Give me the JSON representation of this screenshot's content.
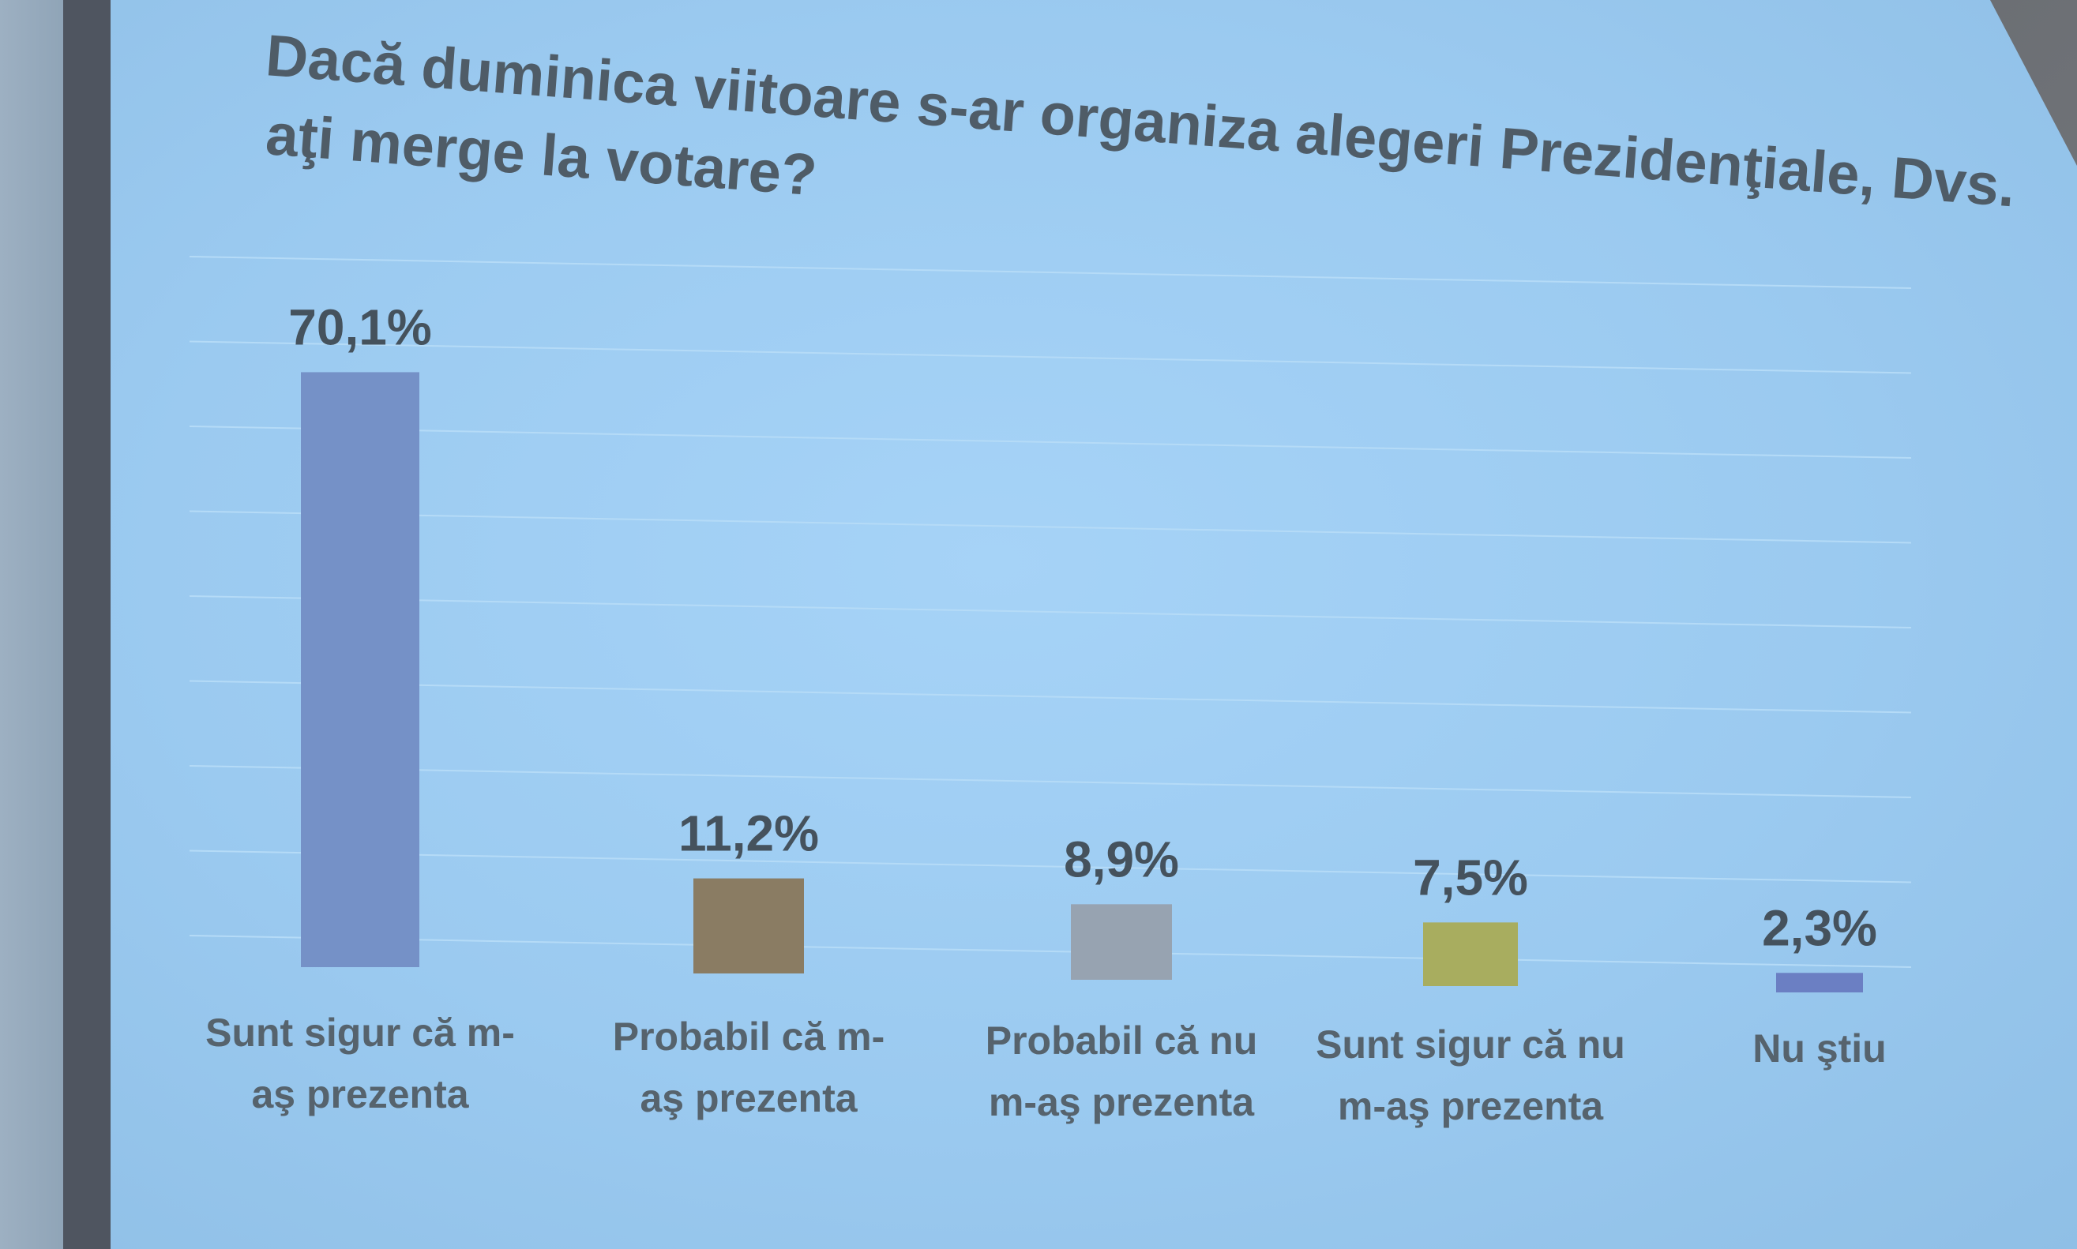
{
  "chart_data": {
    "type": "bar",
    "title_lines": [
      "Dacă duminica viitoare s-ar organiza alegeri Prezidenţiale, Dvs.",
      "aţi merge la votare?"
    ],
    "categories": [
      [
        "Sunt sigur că m-",
        "aş prezenta"
      ],
      [
        "Probabil că m-",
        "aş prezenta"
      ],
      [
        "Probabil că nu",
        "m-aş prezenta"
      ],
      [
        "Sunt sigur că nu",
        "m-aş prezenta"
      ],
      [
        "Nu ştiu"
      ]
    ],
    "values": [
      70.1,
      11.2,
      8.9,
      7.5,
      2.3
    ],
    "value_labels": [
      "70,1%",
      "11,2%",
      "8,9%",
      "7,5%",
      "2,3%"
    ],
    "colors": [
      "#7591c7",
      "#8a7c63",
      "#97a3b1",
      "#a8ad5f",
      "#6b7fc3"
    ],
    "ylim": [
      0,
      80
    ],
    "grid": true,
    "legend": false
  }
}
